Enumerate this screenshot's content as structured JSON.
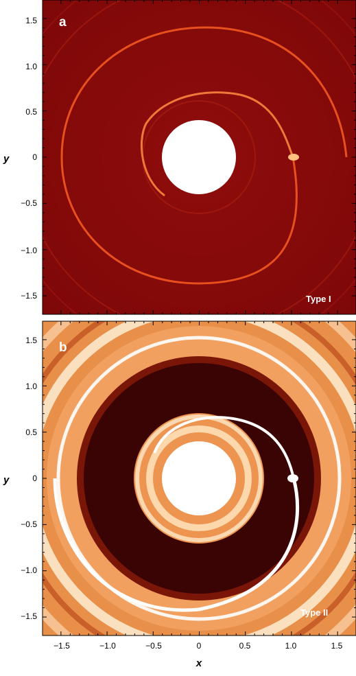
{
  "panels": [
    {
      "letter": "a",
      "type_label": "Type I",
      "ylabel": "y",
      "colors": {
        "background": "#8c0a0a",
        "wake": "#ff8a4a",
        "inner_hole": "#ffffff"
      }
    },
    {
      "letter": "b",
      "type_label": "Type II",
      "ylabel": "y",
      "colors": {
        "gap": "#3a0404",
        "disk": "#f09850",
        "bright": "#fff4e0",
        "inner_hole": "#ffffff"
      }
    }
  ],
  "axes": {
    "xlabel": "x",
    "xticks": [
      "−1.5",
      "−1.0",
      "−0.5",
      "0",
      "0.5",
      "1.0",
      "1.5"
    ],
    "yticks": [
      "1.5",
      "1.0",
      "0.5",
      "0",
      "−0.5",
      "−1.0",
      "−1.5"
    ],
    "xlim": [
      -1.7,
      1.7
    ],
    "ylim": [
      -1.7,
      1.7
    ]
  }
}
